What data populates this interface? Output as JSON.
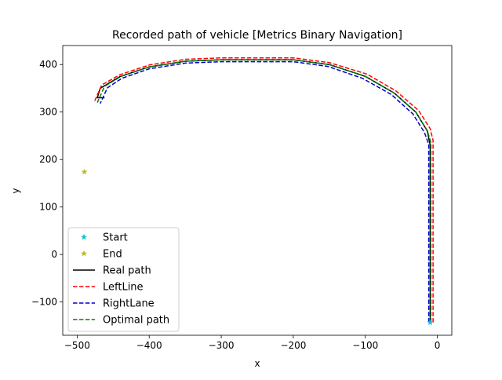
{
  "chart_data": {
    "type": "line",
    "title": "Recorded path of vehicle [Metrics Binary Navigation]",
    "xlabel": "x",
    "ylabel": "y",
    "xlim": [
      -520,
      20
    ],
    "ylim": [
      -170,
      440
    ],
    "xticks": [
      -500,
      -400,
      -300,
      -200,
      -100,
      0
    ],
    "yticks": [
      -100,
      0,
      100,
      200,
      300,
      400
    ],
    "xtick_labels": [
      "−500",
      "−400",
      "−300",
      "−200",
      "−100",
      "0"
    ],
    "ytick_labels": [
      "−100",
      "0",
      "100",
      "200",
      "300",
      "400"
    ],
    "grid": false,
    "legend_position": "lower-left",
    "legend": [
      {
        "label": "Start",
        "kind": "marker",
        "color": "#17becf"
      },
      {
        "label": "End",
        "kind": "marker",
        "color": "#bcbd22"
      },
      {
        "label": "Real path",
        "kind": "solid",
        "color": "#000000"
      },
      {
        "label": "LeftLine",
        "kind": "dashed",
        "color": "#ff0000"
      },
      {
        "label": "RightLane",
        "kind": "dashed",
        "color": "#0000cc"
      },
      {
        "label": "Optimal path",
        "kind": "dashed",
        "color": "#008000"
      }
    ],
    "markers": {
      "start": {
        "x": -10,
        "y": -143
      },
      "end": {
        "x": -490,
        "y": 174
      }
    },
    "series": [
      {
        "name": "Real path",
        "style": "solid",
        "color": "#000000",
        "width": 1.5,
        "points": [
          [
            -10,
            -140
          ],
          [
            -10,
            230
          ],
          [
            -14,
            260
          ],
          [
            -30,
            300
          ],
          [
            -60,
            340
          ],
          [
            -100,
            375
          ],
          [
            -150,
            400
          ],
          [
            -200,
            410
          ],
          [
            -300,
            410
          ],
          [
            -350,
            407
          ],
          [
            -400,
            395
          ],
          [
            -440,
            375
          ],
          [
            -468,
            350
          ],
          [
            -472,
            330
          ],
          [
            -462,
            330
          ]
        ]
      },
      {
        "name": "LeftLine",
        "style": "dashed",
        "color": "#ff0000",
        "width": 1.5,
        "points": [
          [
            -6,
            -143
          ],
          [
            -6,
            240
          ],
          [
            -10,
            265
          ],
          [
            -26,
            303
          ],
          [
            -58,
            345
          ],
          [
            -98,
            380
          ],
          [
            -150,
            404
          ],
          [
            -200,
            414
          ],
          [
            -300,
            414
          ],
          [
            -350,
            411
          ],
          [
            -400,
            399
          ],
          [
            -440,
            379
          ],
          [
            -466,
            357
          ],
          [
            -476,
            322
          ]
        ]
      },
      {
        "name": "RightLane",
        "style": "dashed",
        "color": "#0000cc",
        "width": 1.5,
        "points": [
          [
            -12,
            -143
          ],
          [
            -12,
            232
          ],
          [
            -18,
            257
          ],
          [
            -34,
            296
          ],
          [
            -64,
            337
          ],
          [
            -104,
            371
          ],
          [
            -152,
            396
          ],
          [
            -200,
            406
          ],
          [
            -300,
            406
          ],
          [
            -350,
            403
          ],
          [
            -400,
            391
          ],
          [
            -438,
            371
          ],
          [
            -458,
            351
          ],
          [
            -468,
            318
          ]
        ]
      },
      {
        "name": "Optimal path",
        "style": "dashed",
        "color": "#008000",
        "width": 1.5,
        "points": [
          [
            -9,
            -143
          ],
          [
            -9,
            236
          ],
          [
            -14,
            261
          ],
          [
            -30,
            300
          ],
          [
            -61,
            341
          ],
          [
            -101,
            376
          ],
          [
            -151,
            400
          ],
          [
            -200,
            410
          ],
          [
            -300,
            410
          ],
          [
            -350,
            407
          ],
          [
            -400,
            395
          ],
          [
            -439,
            375
          ],
          [
            -462,
            354
          ],
          [
            -472,
            320
          ]
        ]
      }
    ]
  }
}
